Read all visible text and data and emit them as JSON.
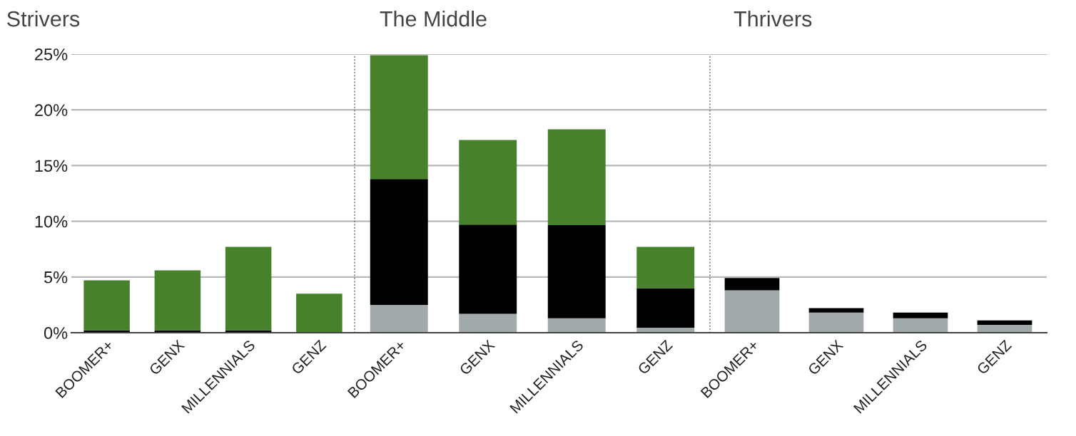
{
  "chart_data": [
    {
      "type": "bar",
      "title": "Strivers",
      "stacked": true,
      "categories": [
        "BOOMER+",
        "GENX",
        "MILLENNIALS",
        "GENZ"
      ],
      "ylim": [
        0,
        25
      ],
      "yticks": [
        {
          "value": 0,
          "label": "0%"
        },
        {
          "value": 5,
          "label": "5%"
        },
        {
          "value": 10,
          "label": "10%"
        },
        {
          "value": 15,
          "label": "15%"
        },
        {
          "value": 20,
          "label": "20%"
        },
        {
          "value": 25,
          "label": "25%"
        }
      ],
      "grid": "y",
      "series": [
        {
          "color": "#000000",
          "values": [
            0.2,
            0.2,
            0.2,
            0
          ]
        },
        {
          "color": "#48812c",
          "values": [
            4.5,
            5.4,
            7.5,
            3.5
          ]
        }
      ]
    },
    {
      "type": "bar",
      "title": "The Middle",
      "stacked": true,
      "categories": [
        "BOOMER+",
        "GENX",
        "MILLENNIALS",
        "GENZ"
      ],
      "ylim": [
        0,
        25
      ],
      "yticks": [
        0,
        5,
        10,
        15,
        20,
        25
      ],
      "grid": "y",
      "tick_labels": "x",
      "series": [
        {
          "color": "#a2a9ab",
          "values": [
            2.5,
            1.7,
            1.3,
            0.45
          ]
        },
        {
          "color": "#000000",
          "values": [
            11.3,
            8.0,
            8.35,
            3.55
          ]
        },
        {
          "color": "#48812c",
          "values": [
            11.1,
            7.6,
            8.6,
            3.7
          ]
        }
      ]
    },
    {
      "type": "bar",
      "title": "Thrivers",
      "stacked": true,
      "categories": [
        "BOOMER+",
        "GENX",
        "MILLENNIALS",
        "GENZ"
      ],
      "ylim": [
        0,
        25
      ],
      "yticks": [
        0,
        5,
        10,
        15,
        20,
        25
      ],
      "grid": "y",
      "tick_labels": "x",
      "series": [
        {
          "color": "#a2a9ab",
          "values": [
            3.8,
            1.8,
            1.3,
            0.7
          ]
        },
        {
          "color": "#000000",
          "values": [
            1.1,
            0.4,
            0.5,
            0.4
          ]
        }
      ]
    }
  ]
}
